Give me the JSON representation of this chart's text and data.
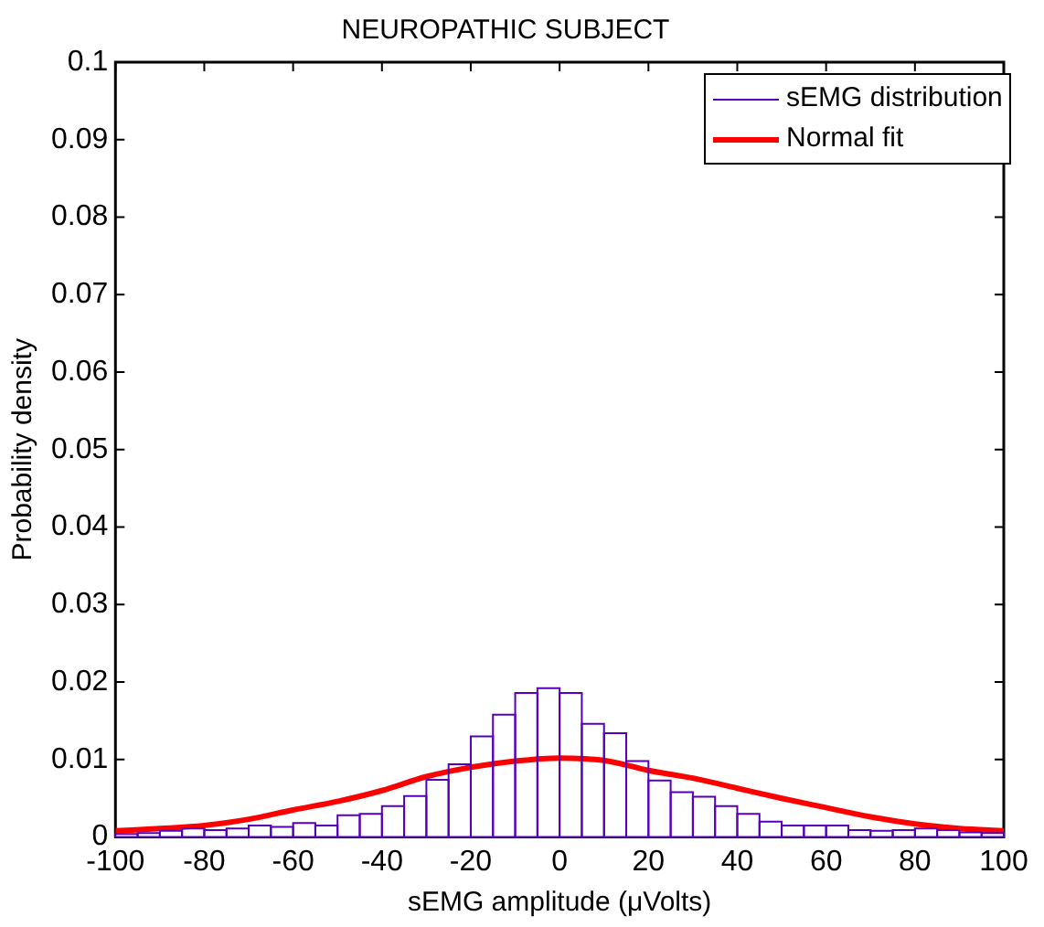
{
  "chart_data": {
    "type": "histogram",
    "title": "NEUROPATHIC SUBJECT",
    "xlabel": "sEMG amplitude (μVolts)",
    "ylabel": "Probability density",
    "xlim": [
      -100,
      100
    ],
    "xticks": [
      -100,
      -80,
      -60,
      -40,
      -20,
      0,
      20,
      40,
      60,
      80,
      100
    ],
    "ylim": [
      0,
      0.1
    ],
    "yticks": [
      0,
      0.01,
      0.02,
      0.03,
      0.04,
      0.05,
      0.06,
      0.07,
      0.08,
      0.09,
      0.1
    ],
    "grid": false,
    "legend": "top right",
    "series": [
      {
        "type": "histogram",
        "name": "sEMG distribution",
        "color": "#5500bb",
        "bins": [
          -100,
          -95,
          -90,
          -85,
          -80,
          -75,
          -70,
          -65,
          -60,
          -55,
          -50,
          -45,
          -40,
          -35,
          -30,
          -25,
          -20,
          -15,
          -10,
          -5,
          0,
          5,
          10,
          15,
          20,
          25,
          30,
          35,
          40,
          45,
          50,
          55,
          60,
          65,
          70,
          75,
          80,
          85,
          90,
          95,
          100
        ],
        "values": [
          0.0004,
          0.0005,
          0.0008,
          0.0011,
          0.0009,
          0.0011,
          0.0015,
          0.0013,
          0.0018,
          0.0015,
          0.0028,
          0.003,
          0.004,
          0.0053,
          0.0074,
          0.0094,
          0.013,
          0.0158,
          0.0186,
          0.0192,
          0.0186,
          0.0146,
          0.0134,
          0.0098,
          0.0073,
          0.0058,
          0.0052,
          0.004,
          0.003,
          0.002,
          0.0015,
          0.0015,
          0.0015,
          0.0009,
          0.0008,
          0.0009,
          0.0011,
          0.0009,
          0.0006,
          0.0005
        ]
      },
      {
        "type": "line",
        "name": "Normal fit",
        "color": "#ff0000",
        "x": [
          -100,
          -90,
          -80,
          -70,
          -60,
          -50,
          -40,
          -30,
          -20,
          -10,
          0,
          10,
          20,
          30,
          40,
          50,
          60,
          70,
          80,
          90,
          100
        ],
        "values": [
          0.0008,
          0.0011,
          0.0015,
          0.0023,
          0.0035,
          0.0046,
          0.006,
          0.0078,
          0.009,
          0.0098,
          0.0102,
          0.0099,
          0.0086,
          0.0076,
          0.0063,
          0.005,
          0.0038,
          0.0026,
          0.0017,
          0.0011,
          0.0008
        ]
      }
    ]
  }
}
